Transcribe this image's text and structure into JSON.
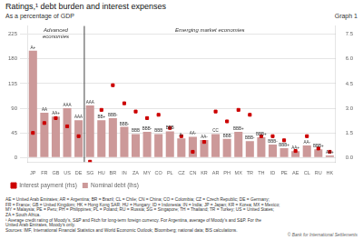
{
  "chart_data": {
    "type": "bar",
    "title": "Ratings,¹ debt burden and interest expenses",
    "subtitle": "As a percentage of GDP",
    "graph_label": "Graph 1",
    "categories": [
      "JP",
      "FR",
      "GB",
      "US",
      "DE",
      "SG",
      "HU",
      "BR",
      "IN",
      "ZA",
      "MY",
      "CO",
      "PL",
      "CZ",
      "CN",
      "KR",
      "AR",
      "PH",
      "MX",
      "TR",
      "TH",
      "ID",
      "PE",
      "AE",
      "CL",
      "RU",
      "HK"
    ],
    "series": [
      {
        "name": "Nominal debt (lhs)",
        "color": "#cc9999",
        "values": [
          195,
          82,
          75,
          90,
          68,
          95,
          68,
          72,
          56,
          43,
          47,
          43,
          48,
          35,
          38,
          32,
          43,
          34,
          47,
          30,
          37,
          24,
          17,
          12,
          22,
          15,
          4
        ],
        "point_labels": [
          "A+",
          "AA",
          "AA+",
          "AAA",
          "AAA",
          "AAA",
          "BB+",
          "BBB-",
          "BBB-",
          "BBB",
          "BBB-",
          "BBB",
          "BBB",
          "A-",
          "AA-",
          "AA-",
          "CC",
          "BBB",
          "BBB+",
          "BBB-",
          "BBB+",
          "BBB-",
          "BBB+",
          "AA+",
          "AA-",
          "BBB+",
          "AA+"
        ]
      },
      {
        "name": "Interest payment (rhs)",
        "type": "scatter",
        "marker": "square",
        "color": "#cc0000",
        "axis": "y2",
        "values": [
          1.5,
          2.1,
          2.4,
          1.9,
          1.3,
          -0.25,
          2.9,
          4.4,
          3.3,
          2.8,
          2.4,
          2.6,
          1.8,
          1.3,
          0.35,
          0.95,
          2.8,
          2.2,
          2.9,
          2.6,
          1.3,
          1.3,
          1.05,
          0.4,
          1.3,
          0.55,
          0.35
        ]
      }
    ],
    "ylim": [
      -8,
      240
    ],
    "yticks": [
      0,
      45,
      90,
      135,
      180,
      225
    ],
    "y2lim": [
      -0.27,
      8.0
    ],
    "y2ticks": [
      {
        "value": 0.0,
        "label": "0.0"
      },
      1.5,
      {
        "value": 3.0,
        "label": "3.0"
      },
      4.5,
      {
        "value": 6.0,
        "label": "6.0"
      },
      7.5
    ],
    "grid": true,
    "legend": "bottom",
    "separator": 4.5,
    "annotations": [
      "Advanced\neconomies",
      "Emerging market economies"
    ],
    "footnotes": [
      "AE = United Arab Emirates; AR = Argentina; BR = Brazil; CL = Chile; CN = China; CO = Colombia; CZ = Czech Republic; DE = Germany;",
      "FR = France; GB = United Kingdom; HK = Hong Kong SAR; HU = Hungary; ID = Indonesia; IN = India; JP = Japan; KR = Korea; MX = Mexico;",
      "MY = Malaysia; PE = Peru; PH = Philippines; PL = Poland; RU = Russia; SG = Singapore; TH = Thailand; TR = Turkey; US = United States;",
      "ZA = South Africa.",
      "¹ Average credit rating of Moody’s, S&P and Fitch for long-term foreign currency. For Argentina, average of Moody’s and S&P. For the",
      "United Arab Emirates, Moody’s only.",
      "Sources: IMF, International Financial Statistics and World Economic Outlook; Bloomberg; national data; BIS calculations."
    ],
    "copyright": "© Bank for International Settlements"
  }
}
